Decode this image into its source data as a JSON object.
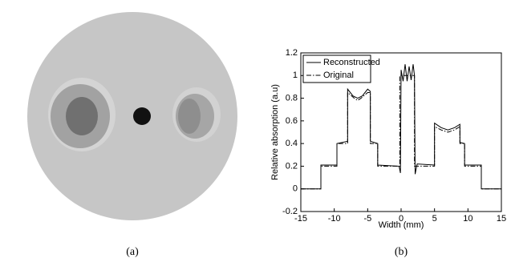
{
  "captions": [
    "(a)",
    "(b)"
  ],
  "chart_data": {
    "type": "line",
    "xlabel": "Width (mm)",
    "ylabel": "Relative absorption (a.u)",
    "xlim": [
      -15,
      15
    ],
    "ylim": [
      -0.2,
      1.2
    ],
    "xticks": [
      -15,
      -10,
      -5,
      0,
      5,
      10,
      15
    ],
    "yticks": [
      -0.2,
      0,
      0.2,
      0.4,
      0.6,
      0.8,
      1,
      1.2
    ],
    "legend": "upper left",
    "series": [
      {
        "name": "Reconstructed",
        "color": "#000000",
        "dash": "solid",
        "x": [
          -15,
          -12,
          -12,
          -9.6,
          -9.6,
          -8,
          -8,
          -7.2,
          -6.5,
          -5.8,
          -5,
          -4.6,
          -4.6,
          -3.5,
          -3.5,
          -0.3,
          -0.1,
          0,
          0.3,
          0.6,
          0.9,
          1.2,
          1.5,
          1.8,
          2,
          2.1,
          2.4,
          5,
          5,
          6,
          7,
          8,
          8.8,
          8.8,
          9.5,
          9.5,
          12,
          12,
          15
        ],
        "values": [
          0,
          0,
          0.21,
          0.21,
          0.4,
          0.42,
          0.88,
          0.82,
          0.8,
          0.82,
          0.88,
          0.86,
          0.42,
          0.4,
          0.21,
          0.2,
          0.14,
          1.05,
          0.95,
          1.1,
          0.95,
          1.08,
          0.96,
          1.1,
          1.0,
          0.13,
          0.22,
          0.21,
          0.58,
          0.54,
          0.52,
          0.54,
          0.57,
          0.41,
          0.4,
          0.21,
          0.21,
          0,
          0
        ]
      },
      {
        "name": "Original",
        "color": "#000000",
        "dash": "dashdot",
        "x": [
          -15,
          -12,
          -12,
          -9.6,
          -9.6,
          -8,
          -8,
          -7,
          -6.5,
          -6,
          -5,
          -4.6,
          -4.6,
          -3.5,
          -3.5,
          -0.2,
          -0.2,
          2,
          2,
          5,
          5,
          6,
          7,
          8,
          8.8,
          8.8,
          9.5,
          9.5,
          12,
          12,
          15
        ],
        "values": [
          0,
          0,
          0.2,
          0.2,
          0.4,
          0.4,
          0.85,
          0.8,
          0.78,
          0.8,
          0.85,
          0.85,
          0.4,
          0.4,
          0.2,
          0.2,
          1.0,
          1.0,
          0.2,
          0.2,
          0.55,
          0.52,
          0.5,
          0.52,
          0.55,
          0.4,
          0.4,
          0.2,
          0.2,
          0,
          0
        ]
      }
    ]
  }
}
